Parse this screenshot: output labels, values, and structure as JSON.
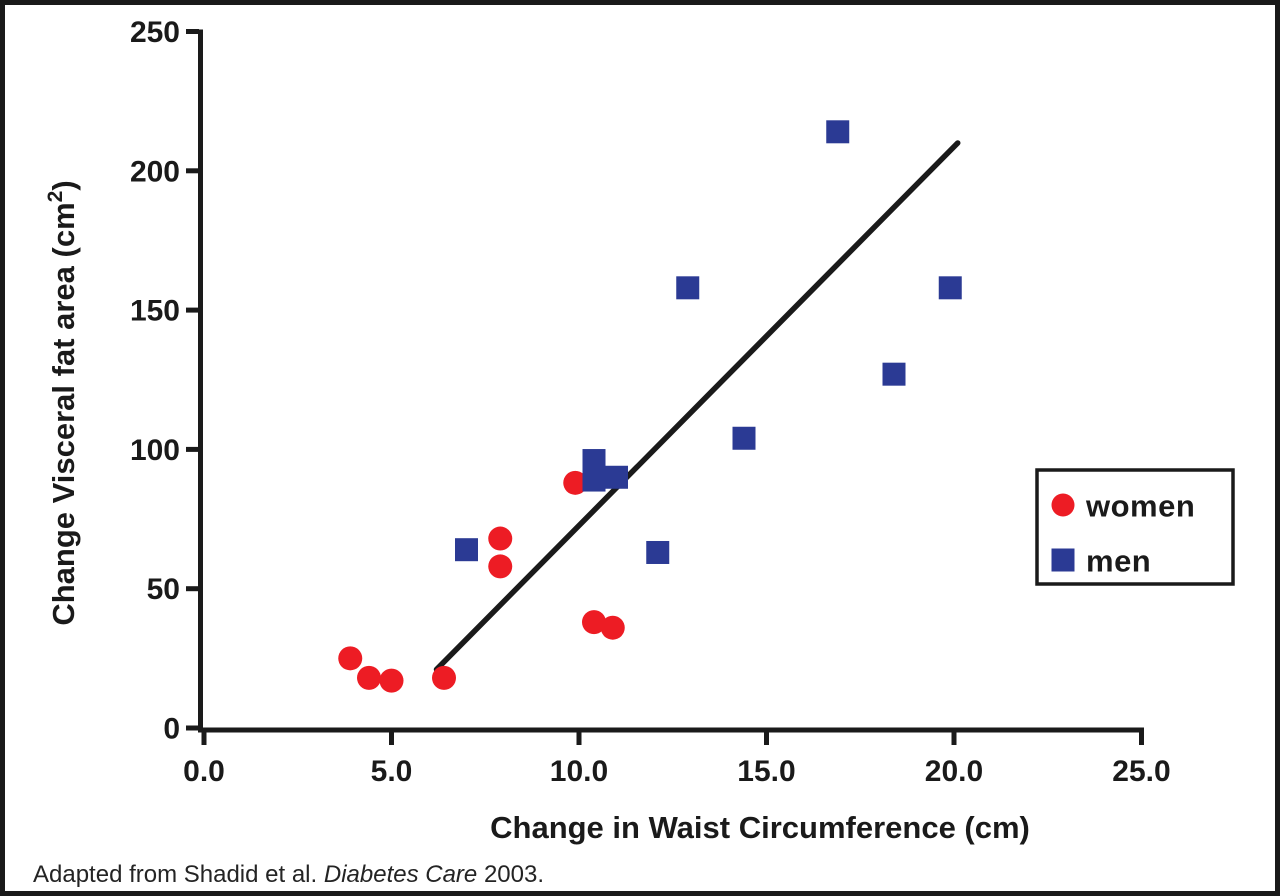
{
  "figure": {
    "background": "#ffffff",
    "border_color": "#1a1a1a"
  },
  "chart_data": {
    "type": "scatter",
    "title": "",
    "xlabel": "Change in Waist Circumference (cm)",
    "ylabel": "Change Visceral fat area (cm²)",
    "ylabel_parts": {
      "main": "Change Visceral fat area (cm",
      "sup": "2",
      "end": ")"
    },
    "xlim": [
      0,
      25
    ],
    "ylim": [
      0,
      250
    ],
    "grid": false,
    "axis_color": "#1a1a1a",
    "x_ticks": {
      "values": [
        0,
        5,
        10,
        15,
        20,
        25
      ],
      "labels": [
        "0.0",
        "5.0",
        "10.0",
        "15.0",
        "20.0",
        "25.0"
      ]
    },
    "y_ticks": {
      "values": [
        0,
        50,
        100,
        150,
        200,
        250
      ],
      "labels": [
        "0",
        "50",
        "100",
        "150",
        "200",
        "250"
      ]
    },
    "series": [
      {
        "name": "women",
        "marker": "circle",
        "color": "#ed1c24",
        "points": [
          [
            3.9,
            25
          ],
          [
            4.4,
            18
          ],
          [
            5.0,
            17
          ],
          [
            6.4,
            18
          ],
          [
            7.9,
            58
          ],
          [
            7.9,
            68
          ],
          [
            9.9,
            88
          ],
          [
            10.4,
            38
          ],
          [
            10.9,
            36
          ]
        ]
      },
      {
        "name": "men",
        "marker": "square",
        "color": "#2b3a94",
        "points": [
          [
            7.0,
            64
          ],
          [
            10.4,
            96
          ],
          [
            10.4,
            89
          ],
          [
            11.0,
            90
          ],
          [
            12.1,
            63
          ],
          [
            12.9,
            158
          ],
          [
            14.4,
            104
          ],
          [
            16.9,
            214
          ],
          [
            18.4,
            127
          ],
          [
            19.9,
            158
          ]
        ]
      }
    ],
    "trend_line": {
      "color": "#1a1a1a",
      "x1": 6.2,
      "y1": 21,
      "x2": 20.1,
      "y2": 210
    },
    "legend": {
      "position": "right-middle",
      "entries": [
        "women",
        "men"
      ]
    }
  },
  "caption": {
    "prefix": "Adapted from Shadid et al. ",
    "journal": "Diabetes Care",
    "suffix": " 2003."
  }
}
